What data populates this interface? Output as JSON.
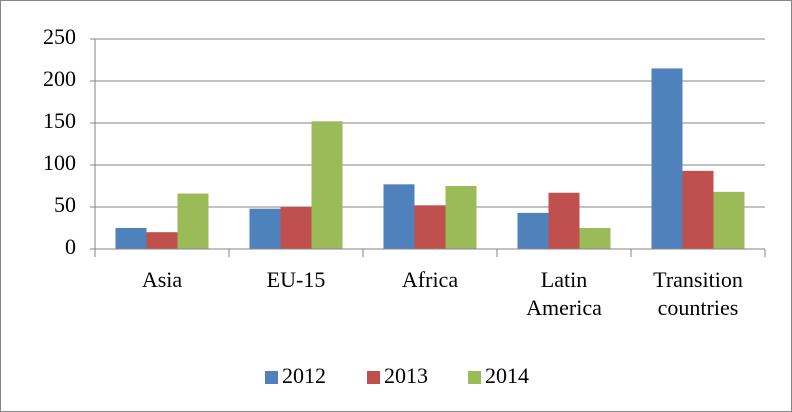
{
  "chart_data": {
    "type": "bar",
    "categories": [
      "Asia",
      "EU-15",
      "Africa",
      "Latin America",
      "Transition countries"
    ],
    "series": [
      {
        "name": "2012",
        "color": "#4f81bd",
        "values": [
          25,
          48,
          77,
          43,
          215
        ]
      },
      {
        "name": "2013",
        "color": "#c0504d",
        "values": [
          20,
          50,
          52,
          67,
          93
        ]
      },
      {
        "name": "2014",
        "color": "#9bbb59",
        "values": [
          66,
          152,
          75,
          25,
          68
        ]
      }
    ],
    "ylim": [
      0,
      250
    ],
    "yticks": [
      0,
      50,
      100,
      150,
      200,
      250
    ],
    "grid": true,
    "legend": "bottom"
  }
}
